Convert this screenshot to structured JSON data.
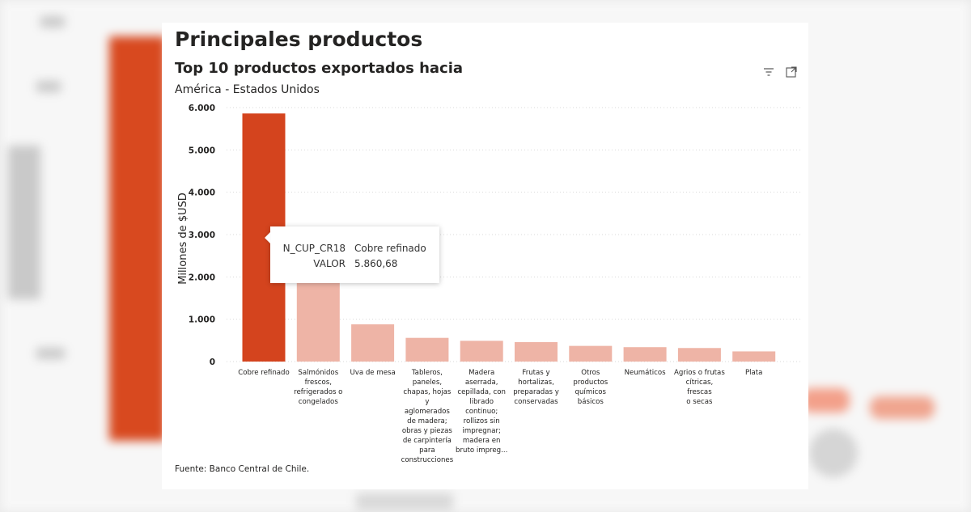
{
  "page": {
    "title": "Principales productos",
    "source": "Fuente: Banco Central de Chile."
  },
  "icons": {
    "filter": "filter-icon",
    "focus": "focus-mode-icon"
  },
  "colors": {
    "highlight": "#d4441e",
    "bar": "#eeb4a6",
    "grid": "#d9d9d9"
  },
  "tooltip": {
    "rows": [
      {
        "key": "N_CUP_CR18",
        "value": "Cobre refinado"
      },
      {
        "key": "VALOR",
        "value": "5.860,68"
      }
    ]
  },
  "chart_data": {
    "type": "bar",
    "title": "Top 10 productos exportados hacia",
    "subtitle": "América - Estados Unidos",
    "ylabel": "Millones de $USD",
    "xlabel": "",
    "ylim": [
      0,
      6000
    ],
    "yticks": [
      {
        "value": 0,
        "label": "0"
      },
      {
        "value": 1000,
        "label": "1.000"
      },
      {
        "value": 2000,
        "label": "2.000"
      },
      {
        "value": 3000,
        "label": "3.000"
      },
      {
        "value": 4000,
        "label": "4.000"
      },
      {
        "value": 5000,
        "label": "5.000"
      },
      {
        "value": 6000,
        "label": "6.000"
      }
    ],
    "grid": true,
    "categories": [
      [
        "Cobre refinado"
      ],
      [
        "Salmónidos",
        "frescos,",
        "refrigerados o",
        "congelados"
      ],
      [
        "Uva de mesa"
      ],
      [
        "Tableros,",
        "paneles,",
        "chapas, hojas y",
        "aglomerados",
        "de madera;",
        "obras y piezas",
        "de carpintería",
        "para",
        "construcciones"
      ],
      [
        "Madera",
        "aserrada,",
        "cepillada, con",
        "librado",
        "continuo;",
        "rollizos sin",
        "impregnar;",
        "madera en",
        "bruto impreg..."
      ],
      [
        "Frutas y",
        "hortalizas,",
        "preparadas y",
        "conservadas"
      ],
      [
        "Otros",
        "productos",
        "químicos",
        "básicos"
      ],
      [
        "Neumáticos"
      ],
      [
        "Agrios o frutas",
        "cítricas, frescas",
        "o secas"
      ],
      [
        "Plata"
      ]
    ],
    "values": [
      5860.68,
      1900,
      880,
      560,
      490,
      460,
      370,
      340,
      320,
      240
    ],
    "highlighted_index": 0
  }
}
